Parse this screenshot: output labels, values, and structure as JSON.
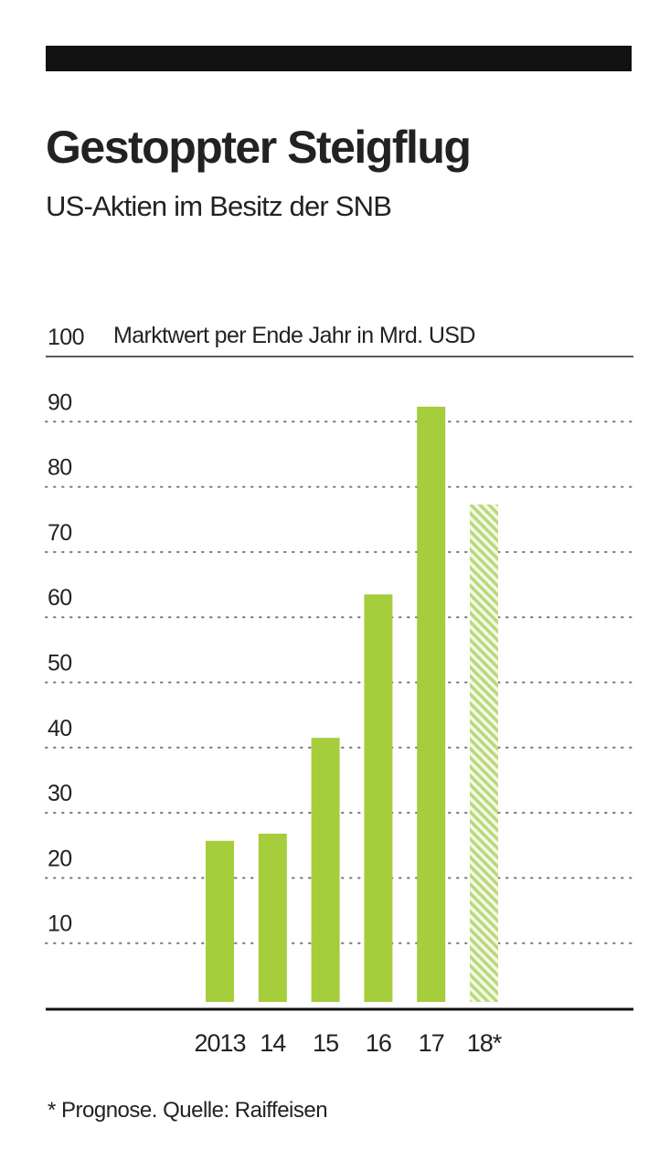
{
  "chart_data": {
    "type": "bar",
    "title": "Gestoppter Steigflug",
    "subtitle": "US-Aktien im Besitz der SNB",
    "ylabel": "Marktwert per Ende Jahr in Mrd. USD",
    "xlabel": "",
    "categories": [
      "2013",
      "14",
      "15",
      "16",
      "17",
      "18*"
    ],
    "values": [
      25.7,
      26.8,
      41.5,
      63.5,
      92.3,
      77.3
    ],
    "forecast": [
      false,
      false,
      false,
      false,
      false,
      true
    ],
    "ylim": [
      0,
      100
    ],
    "yticks": [
      10,
      20,
      30,
      40,
      50,
      60,
      70,
      80,
      90,
      100
    ],
    "grid": true,
    "footnote": "* Prognose. Quelle: Raiffeisen",
    "colors": {
      "bar": "#a5cd3c",
      "forecast_hatch": "#b9d979",
      "grid": "#777777",
      "axis": "#111111"
    }
  }
}
